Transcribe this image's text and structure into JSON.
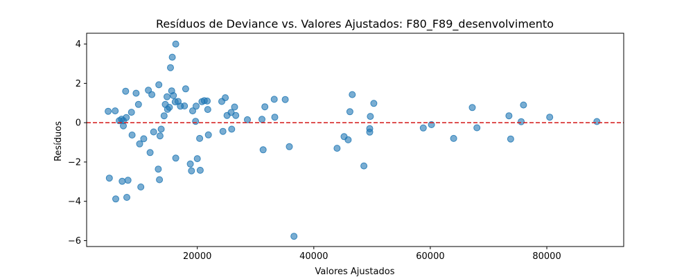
{
  "chart_data": {
    "type": "scatter",
    "title": "Resíduos de Deviance vs. Valores Ajustados: F80_F89_desenvolvimento",
    "xlabel": "Valores Ajustados",
    "ylabel": "Resíduos",
    "xlim": [
      1000,
      93200
    ],
    "ylim": [
      -6.3,
      4.55
    ],
    "xticks": [
      20000,
      40000,
      60000,
      80000
    ],
    "xtick_labels": [
      "20000",
      "40000",
      "60000",
      "80000"
    ],
    "yticks": [
      -6,
      -4,
      -2,
      0,
      2,
      4
    ],
    "ytick_labels": [
      "−6",
      "−4",
      "−2",
      "0",
      "2",
      "4"
    ],
    "reference_line": {
      "y": 0,
      "style": "dashed",
      "color": "#d62728"
    },
    "point_color": "#1f77b4",
    "point_alpha": 0.6,
    "grid": false,
    "points": [
      [
        4700,
        0.58
      ],
      [
        4900,
        -2.82
      ],
      [
        5900,
        0.6
      ],
      [
        6000,
        -3.88
      ],
      [
        6600,
        0.1
      ],
      [
        7000,
        0.18
      ],
      [
        7100,
        -2.98
      ],
      [
        7300,
        0.1
      ],
      [
        7300,
        -0.16
      ],
      [
        7700,
        1.6
      ],
      [
        7800,
        0.26
      ],
      [
        7900,
        -3.8
      ],
      [
        8100,
        -2.93
      ],
      [
        8700,
        0.53
      ],
      [
        8800,
        -0.63
      ],
      [
        9500,
        1.5
      ],
      [
        9900,
        0.93
      ],
      [
        10100,
        -1.08
      ],
      [
        10300,
        -3.27
      ],
      [
        10800,
        -0.82
      ],
      [
        11600,
        1.65
      ],
      [
        11900,
        -1.52
      ],
      [
        12200,
        1.43
      ],
      [
        12500,
        -0.47
      ],
      [
        13300,
        -2.36
      ],
      [
        13500,
        -2.9
      ],
      [
        13400,
        1.93
      ],
      [
        13600,
        -0.67
      ],
      [
        13800,
        -0.33
      ],
      [
        14300,
        0.35
      ],
      [
        14500,
        0.93
      ],
      [
        14800,
        1.32
      ],
      [
        14900,
        0.68
      ],
      [
        15200,
        0.78
      ],
      [
        15400,
        2.8
      ],
      [
        15600,
        1.62
      ],
      [
        15700,
        3.33
      ],
      [
        15900,
        1.38
      ],
      [
        16200,
        1.06
      ],
      [
        16300,
        4.0
      ],
      [
        16300,
        -1.8
      ],
      [
        16700,
        1.08
      ],
      [
        17100,
        0.84
      ],
      [
        17800,
        0.85
      ],
      [
        18000,
        1.72
      ],
      [
        18800,
        -2.1
      ],
      [
        19000,
        -2.45
      ],
      [
        19200,
        0.6
      ],
      [
        19700,
        0.07
      ],
      [
        19800,
        0.84
      ],
      [
        20000,
        -1.83
      ],
      [
        20400,
        -0.8
      ],
      [
        20500,
        -2.42
      ],
      [
        20800,
        1.07
      ],
      [
        21200,
        1.12
      ],
      [
        21700,
        1.1
      ],
      [
        21800,
        0.67
      ],
      [
        21900,
        -0.62
      ],
      [
        24200,
        1.08
      ],
      [
        24400,
        -0.44
      ],
      [
        24800,
        1.27
      ],
      [
        25100,
        0.37
      ],
      [
        25800,
        0.52
      ],
      [
        25900,
        -0.33
      ],
      [
        26400,
        0.8
      ],
      [
        26600,
        0.37
      ],
      [
        28600,
        0.15
      ],
      [
        31100,
        0.17
      ],
      [
        31300,
        -1.38
      ],
      [
        31600,
        0.81
      ],
      [
        33200,
        1.19
      ],
      [
        33300,
        0.28
      ],
      [
        35100,
        1.18
      ],
      [
        35800,
        -1.22
      ],
      [
        36600,
        -5.78
      ],
      [
        44000,
        -1.3
      ],
      [
        45200,
        -0.71
      ],
      [
        45900,
        -0.87
      ],
      [
        46200,
        0.56
      ],
      [
        46600,
        1.43
      ],
      [
        48600,
        -2.2
      ],
      [
        49600,
        -0.3
      ],
      [
        49600,
        -0.48
      ],
      [
        49700,
        0.32
      ],
      [
        50300,
        0.98
      ],
      [
        58800,
        -0.27
      ],
      [
        60200,
        -0.1
      ],
      [
        64000,
        -0.8
      ],
      [
        67200,
        0.77
      ],
      [
        68000,
        -0.26
      ],
      [
        73500,
        0.35
      ],
      [
        73800,
        -0.83
      ],
      [
        75600,
        0.05
      ],
      [
        76000,
        0.9
      ],
      [
        80500,
        0.28
      ],
      [
        88600,
        0.06
      ]
    ]
  }
}
